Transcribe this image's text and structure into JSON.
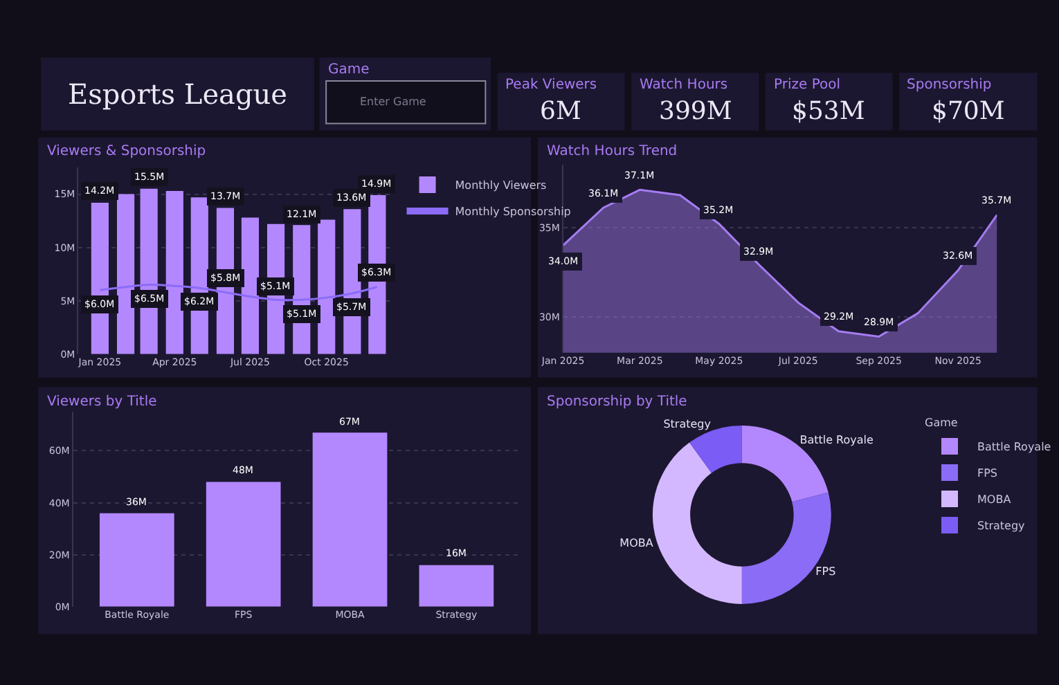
{
  "chart_data": [
    {
      "type": "other",
      "title": "Esports League"
    },
    {
      "type": "other",
      "title": "Game",
      "annotations": [
        "Enter Game"
      ]
    },
    {
      "type": "other",
      "title": "Peak Viewers",
      "annotations": [
        "6M"
      ]
    },
    {
      "type": "other",
      "title": "Watch Hours",
      "annotations": [
        "399M"
      ]
    },
    {
      "type": "other",
      "title": "Prize Pool",
      "annotations": [
        "$53M"
      ]
    },
    {
      "type": "other",
      "title": "Sponsorship",
      "annotations": [
        "$70M"
      ]
    },
    {
      "type": "bar",
      "title": "Viewers & Sponsorship",
      "x": [
        "2025-01",
        "2025-02",
        "2025-03",
        "2025-04",
        "2025-05",
        "2025-06",
        "2025-07",
        "2025-08",
        "2025-09",
        "2025-10",
        "2025-11",
        "2025-12"
      ],
      "xlim": [
        "2024-12-06",
        "2025-12-17"
      ],
      "xticks": [
        {
          "value": "2025-01",
          "label": "Jan 2025"
        },
        {
          "value": "2025-04",
          "label": "Apr 2025"
        },
        {
          "value": "2025-07",
          "label": "Jul 2025"
        },
        {
          "value": "2025-10",
          "label": "Oct 2025"
        }
      ],
      "ylim": [
        0,
        17.5
      ],
      "yticks": [
        {
          "value": 0,
          "label": "0M"
        },
        {
          "value": 5,
          "label": "5M"
        },
        {
          "value": 10,
          "label": "10M"
        },
        {
          "value": 15,
          "label": "15M"
        }
      ],
      "grid": "y",
      "legend": "right",
      "series": [
        {
          "name": "Monthly Viewers",
          "type": "bar",
          "color": "#b388ff",
          "values": [
            14.2,
            15.0,
            15.5,
            15.3,
            14.7,
            13.7,
            12.8,
            12.2,
            12.1,
            12.6,
            13.6,
            14.9
          ],
          "value_labels": [
            "14.2M",
            null,
            "15.5M",
            null,
            null,
            "13.7M",
            null,
            null,
            "12.1M",
            null,
            "13.6M",
            "14.9M"
          ]
        },
        {
          "name": "Monthly Sponsorship",
          "type": "line",
          "color": "#8b6cf6",
          "values": [
            6.0,
            6.3,
            6.5,
            6.4,
            6.2,
            5.8,
            5.4,
            5.1,
            5.1,
            5.3,
            5.7,
            6.3
          ],
          "value_labels": [
            "$6.0M",
            null,
            "$6.5M",
            null,
            "$6.2M",
            "$5.8M",
            null,
            "$5.1M",
            "$5.1M",
            null,
            "$5.7M",
            "$6.3M"
          ]
        }
      ]
    },
    {
      "type": "area",
      "title": "Watch Hours Trend",
      "x": [
        "2025-01",
        "2025-02",
        "2025-03",
        "2025-04",
        "2025-05",
        "2025-06",
        "2025-07",
        "2025-08",
        "2025-09",
        "2025-10",
        "2025-11",
        "2025-12"
      ],
      "values": [
        34.0,
        36.1,
        37.1,
        36.8,
        35.2,
        32.9,
        30.8,
        29.2,
        28.9,
        30.2,
        32.6,
        35.7
      ],
      "color": "#a57cf0",
      "value_labels": [
        "34.0M",
        "36.1M",
        "37.1M",
        null,
        "35.2M",
        "32.9M",
        null,
        "29.2M",
        "28.9M",
        null,
        "32.6M",
        "35.7M"
      ],
      "xlim": [
        "2025-01",
        "2025-12"
      ],
      "xticks": [
        {
          "value": "2025-01",
          "label": "Jan 2025"
        },
        {
          "value": "2025-03",
          "label": "Mar 2025"
        },
        {
          "value": "2025-05",
          "label": "May 2025"
        },
        {
          "value": "2025-07",
          "label": "Jul 2025"
        },
        {
          "value": "2025-09",
          "label": "Sep 2025"
        },
        {
          "value": "2025-11",
          "label": "Nov 2025"
        }
      ],
      "ylim": [
        28,
        38.5
      ],
      "yticks": [
        {
          "value": 30,
          "label": "30M"
        },
        {
          "value": 35,
          "label": "35M"
        }
      ],
      "grid": "y"
    },
    {
      "type": "bar",
      "title": "Viewers by Title",
      "categories": [
        "Battle Royale",
        "FPS",
        "MOBA",
        "Strategy"
      ],
      "values": [
        36,
        48,
        67,
        16
      ],
      "color": "#b388ff",
      "value_labels": [
        "36M",
        "48M",
        "67M",
        "16M"
      ],
      "ylim": [
        0,
        75
      ],
      "yticks": [
        {
          "value": 0,
          "label": "0M"
        },
        {
          "value": 20,
          "label": "20M"
        },
        {
          "value": 40,
          "label": "40M"
        },
        {
          "value": 60,
          "label": "60M"
        }
      ],
      "grid": "y"
    },
    {
      "type": "donut",
      "title": "Sponsorship by Title",
      "categories": [
        "Battle Royale",
        "FPS",
        "MOBA",
        "Strategy"
      ],
      "values": [
        21,
        29,
        40,
        10
      ],
      "colors": [
        "#b388ff",
        "#8b6cf6",
        "#d4b8ff",
        "#7b5cf5"
      ],
      "legend": "right",
      "legend_title": "Game"
    }
  ]
}
